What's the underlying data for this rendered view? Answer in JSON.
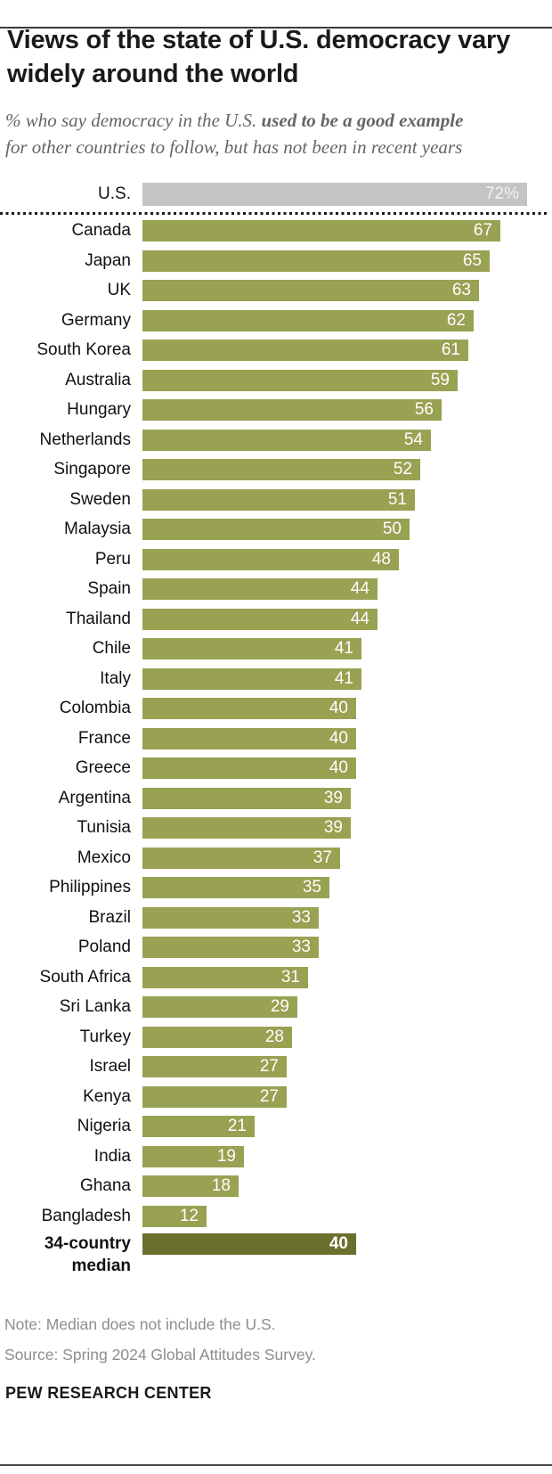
{
  "header": {
    "title": "Views of the state of U.S. democracy vary widely around the world",
    "subtitle_prefix": "% who say democracy in the U.S. ",
    "subtitle_bold": "used to be a good example",
    "subtitle_suffix": " for other countries to follow, but has not been in recent years"
  },
  "chart_data": {
    "type": "bar",
    "orientation": "horizontal",
    "unit": "percent",
    "xlim": [
      0,
      75
    ],
    "value_labels": "inside-end",
    "grid": false,
    "legend": "none",
    "bar_color": "#99a152",
    "highlight_row": {
      "label": "U.S.",
      "value": 72,
      "display": "72%",
      "color": "#c4c4c4"
    },
    "categories": [
      "Canada",
      "Japan",
      "UK",
      "Germany",
      "South Korea",
      "Australia",
      "Hungary",
      "Netherlands",
      "Singapore",
      "Sweden",
      "Malaysia",
      "Peru",
      "Spain",
      "Thailand",
      "Chile",
      "Italy",
      "Colombia",
      "France",
      "Greece",
      "Argentina",
      "Tunisia",
      "Mexico",
      "Philippines",
      "Brazil",
      "Poland",
      "South Africa",
      "Sri Lanka",
      "Turkey",
      "Israel",
      "Kenya",
      "Nigeria",
      "India",
      "Ghana",
      "Bangladesh"
    ],
    "values": [
      67,
      65,
      63,
      62,
      61,
      59,
      56,
      54,
      52,
      51,
      50,
      48,
      44,
      44,
      41,
      41,
      40,
      40,
      40,
      39,
      39,
      37,
      35,
      33,
      33,
      31,
      29,
      28,
      27,
      27,
      21,
      19,
      18,
      12
    ],
    "median_row": {
      "label": "34-country median",
      "value": 40,
      "display": "40",
      "color": "#6a6f2e"
    },
    "separator_after_us": true
  },
  "footer": {
    "note": "Note: Median does not include the U.S.",
    "source": "Source: Spring 2024 Global Attitudes Survey.",
    "brand": "PEW RESEARCH CENTER"
  }
}
